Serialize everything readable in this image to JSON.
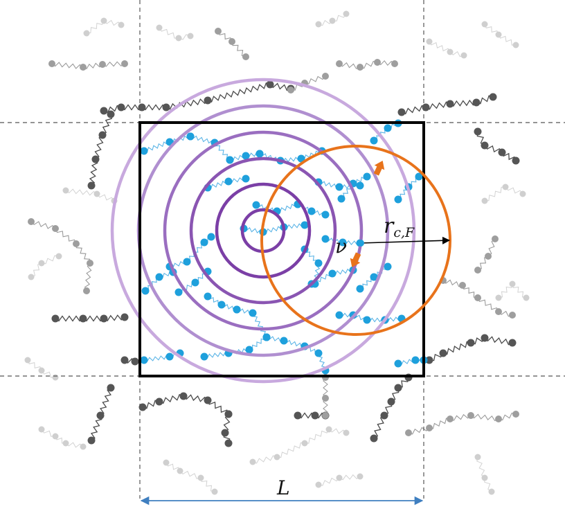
{
  "labels": {
    "box_length": "L",
    "cutoff_radius_main": "r",
    "cutoff_radius_sub": "c,F",
    "nu": "ν"
  },
  "colors": {
    "central_box": "#000000",
    "periodic_grid": "#555555",
    "chain_dark": "#3a3a3a",
    "chain_faint": "#b5b5b5",
    "bead_central": "#1ea0dc",
    "spring_central": "#5ab4e6",
    "shell_dark": "#7b3fa6",
    "shell_light": "#c8a9de",
    "cutoff_circle": "#e8731b",
    "arrow_orange": "#e8731b",
    "dimension_arrow": "#3f7fc0"
  },
  "icons": {
    "nu_motion": "orange-double-arrow-icon",
    "dimension": "double-headed-arrow-icon"
  }
}
